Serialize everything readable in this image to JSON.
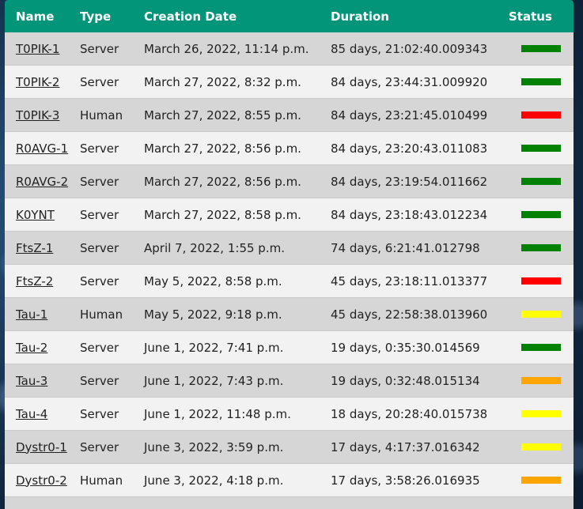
{
  "table": {
    "headers": {
      "name": "Name",
      "type": "Type",
      "creation_date": "Creation Date",
      "duration": "Duration",
      "status": "Status"
    },
    "rows": [
      {
        "name": "T0PIK-1",
        "type": "Server",
        "created": "March 26, 2022, 11:14 p.m.",
        "duration": "85 days, 21:02:40.009343",
        "status_color": "#038103"
      },
      {
        "name": "T0PIK-2",
        "type": "Server",
        "created": "March 27, 2022, 8:32 p.m.",
        "duration": "84 days, 23:44:31.009920",
        "status_color": "#038103"
      },
      {
        "name": "T0PIK-3",
        "type": "Human",
        "created": "March 27, 2022, 8:55 p.m.",
        "duration": "84 days, 23:21:45.010499",
        "status_color": "#ff0000"
      },
      {
        "name": "R0AVG-1",
        "type": "Server",
        "created": "March 27, 2022, 8:56 p.m.",
        "duration": "84 days, 23:20:43.011083",
        "status_color": "#038103"
      },
      {
        "name": "R0AVG-2",
        "type": "Server",
        "created": "March 27, 2022, 8:56 p.m.",
        "duration": "84 days, 23:19:54.011662",
        "status_color": "#038103"
      },
      {
        "name": "K0YNT",
        "type": "Server",
        "created": "March 27, 2022, 8:58 p.m.",
        "duration": "84 days, 23:18:43.012234",
        "status_color": "#038103"
      },
      {
        "name": "FtsZ-1",
        "type": "Server",
        "created": "April 7, 2022, 1:55 p.m.",
        "duration": "74 days, 6:21:41.012798",
        "status_color": "#038103"
      },
      {
        "name": "FtsZ-2",
        "type": "Server",
        "created": "May 5, 2022, 8:58 p.m.",
        "duration": "45 days, 23:18:11.013377",
        "status_color": "#ff0000"
      },
      {
        "name": "Tau-1",
        "type": "Human",
        "created": "May 5, 2022, 9:18 p.m.",
        "duration": "45 days, 22:58:38.013960",
        "status_color": "#ffff00"
      },
      {
        "name": "Tau-2",
        "type": "Server",
        "created": "June 1, 2022, 7:41 p.m.",
        "duration": "19 days, 0:35:30.014569",
        "status_color": "#038103"
      },
      {
        "name": "Tau-3",
        "type": "Server",
        "created": "June 1, 2022, 7:43 p.m.",
        "duration": "19 days, 0:32:48.015134",
        "status_color": "#ffa500"
      },
      {
        "name": "Tau-4",
        "type": "Server",
        "created": "June 1, 2022, 11:48 p.m.",
        "duration": "18 days, 20:28:40.015738",
        "status_color": "#ffff00"
      },
      {
        "name": "Dystr0-1",
        "type": "Server",
        "created": "June 3, 2022, 3:59 p.m.",
        "duration": "17 days, 4:17:37.016342",
        "status_color": "#ffff00"
      },
      {
        "name": "Dystr0-2",
        "type": "Human",
        "created": "June 3, 2022, 4:18 p.m.",
        "duration": "17 days, 3:58:26.016935",
        "status_color": "#ffa500"
      }
    ]
  },
  "colors": {
    "header_bg": "#03957a",
    "row_odd": "#d6d6d6",
    "row_even": "#f2f2f2"
  }
}
